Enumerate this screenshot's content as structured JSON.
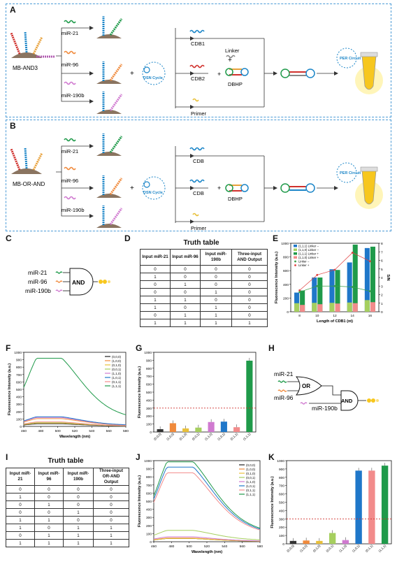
{
  "panel_labels": {
    "A": "A",
    "B": "B",
    "C": "C",
    "D": "D",
    "E": "E",
    "F": "F",
    "G": "G",
    "H": "H",
    "I": "I",
    "J": "J",
    "K": "K"
  },
  "panelA": {
    "start_label": "MB-AND3",
    "inputs": [
      "miR-21",
      "miR-96",
      "miR-190b"
    ],
    "dsn": "DSN Cycle",
    "outputs": [
      "CDB1",
      "CDB2",
      "Primer"
    ],
    "linker": "Linker",
    "plus": "+",
    "dbhp": "DBHP",
    "per": "PER Circuit"
  },
  "panelB": {
    "start_label": "MB-OR-AND",
    "inputs": [
      "miR-21",
      "miR-96",
      "miR-190b"
    ],
    "dsn": "DSN Cycle",
    "outputs": [
      "CDB",
      "CDB",
      "Primer"
    ],
    "dbhp": "DBHP",
    "per": "PER Circuit"
  },
  "panelC": {
    "inputs": [
      "miR-21",
      "miR-96",
      "miR-190b"
    ],
    "gate": "AND"
  },
  "panelD": {
    "title": "Truth table",
    "headers": [
      "Input miR-21",
      "Input miR-96",
      "Input miR-190b",
      "Three-input AND Output"
    ],
    "rows": [
      [
        "0",
        "0",
        "0",
        "0"
      ],
      [
        "1",
        "0",
        "0",
        "0"
      ],
      [
        "0",
        "1",
        "0",
        "0"
      ],
      [
        "0",
        "0",
        "1",
        "0"
      ],
      [
        "1",
        "1",
        "0",
        "0"
      ],
      [
        "1",
        "0",
        "1",
        "0"
      ],
      [
        "0",
        "1",
        "1",
        "0"
      ],
      [
        "1",
        "1",
        "1",
        "1"
      ]
    ]
  },
  "panelH": {
    "inputs": [
      "miR-21",
      "miR-96",
      "miR-190b"
    ],
    "gate1": "OR",
    "gate2": "AND"
  },
  "panelI": {
    "title": "Truth table",
    "headers": [
      "Input miR-21",
      "Input miR-96",
      "Input miR-190b",
      "Three-input OR-AND Output"
    ],
    "rows": [
      [
        "0",
        "0",
        "0",
        "0"
      ],
      [
        "1",
        "0",
        "0",
        "0"
      ],
      [
        "0",
        "1",
        "0",
        "0"
      ],
      [
        "0",
        "0",
        "1",
        "0"
      ],
      [
        "1",
        "1",
        "0",
        "0"
      ],
      [
        "1",
        "0",
        "1",
        "1"
      ],
      [
        "0",
        "1",
        "1",
        "1"
      ],
      [
        "1",
        "1",
        "1",
        "1"
      ]
    ]
  },
  "colors": {
    "blue_box": "#4a9ad6",
    "green": "#1f9a4a",
    "red_dash": "#d0312d",
    "dsn": "#1c86c8"
  },
  "chart_data": [
    {
      "id": "E",
      "type": "bar",
      "xlabel": "Length of CDB1 (nt)",
      "ylabel": "Fluorescence Intensity (a.u.)",
      "y2label": "S/N",
      "categories": [
        "8",
        "10",
        "12",
        "14",
        "16"
      ],
      "ylim": [
        0,
        1000
      ],
      "y2lim": [
        0,
        8
      ],
      "yticks": [
        0,
        200,
        400,
        600,
        800,
        1000
      ],
      "y2ticks": [
        0,
        1,
        2,
        3,
        4,
        5,
        6,
        7,
        8
      ],
      "series": [
        {
          "name": "(1,1,1)  Linker −",
          "color": "#1f77c9",
          "values": [
            280,
            500,
            620,
            720,
            930
          ]
        },
        {
          "name": "(1,1,0)  Linker −",
          "color": "#a6cf5f",
          "values": [
            125,
            130,
            130,
            135,
            170
          ]
        },
        {
          "name": "(1,1,1)  Linker +",
          "color": "#1f9a4a",
          "values": [
            310,
            500,
            610,
            980,
            950
          ]
        },
        {
          "name": "(1,1,0)  Linker +",
          "color": "#f28b8b",
          "values": [
            100,
            110,
            120,
            125,
            140
          ]
        }
      ],
      "sn_series": [
        {
          "name": "Linker −",
          "color": "#3aa04a",
          "values": [
            2.3,
            3.0,
            3.0,
            2.9,
            2.4
          ]
        },
        {
          "name": "Linker +",
          "color": "#e04040",
          "values": [
            2.5,
            4.3,
            4.9,
            6.9,
            5.9
          ]
        }
      ]
    },
    {
      "id": "F",
      "type": "line",
      "xlabel": "Wavelength (nm)",
      "ylabel": "Fluorescence Intensity (a.u.)",
      "xlim": [
        460,
        580
      ],
      "ylim": [
        0,
        1000
      ],
      "xticks": [
        460,
        480,
        500,
        520,
        540,
        560,
        580
      ],
      "yticks": [
        0,
        100,
        200,
        300,
        400,
        500,
        600,
        700,
        800,
        900,
        1000
      ],
      "series": [
        {
          "name": "(0,0,0)",
          "color": "#222222",
          "peak": 35
        },
        {
          "name": "(1,0,0)",
          "color": "#f08a3c",
          "peak": 105
        },
        {
          "name": "(0,1,0)",
          "color": "#e8c03a",
          "peak": 45
        },
        {
          "name": "(0,0,1)",
          "color": "#a6cf5f",
          "peak": 55
        },
        {
          "name": "(1,1,0)",
          "color": "#d07ad0",
          "peak": 120
        },
        {
          "name": "(1,0,1)",
          "color": "#1f77c9",
          "peak": 130
        },
        {
          "name": "(0,1,1)",
          "color": "#f28b8b",
          "peak": 60
        },
        {
          "name": "(1,1,1)",
          "color": "#1f9a4a",
          "peak": 920
        }
      ]
    },
    {
      "id": "G",
      "type": "bar",
      "ylabel": "Fluorescence Intensity (a.u.)",
      "categories": [
        "(0,0,0)",
        "(1,0,0)",
        "(0,1,0)",
        "(0,0,1)",
        "(1,1,0)",
        "(1,0,1)",
        "(0,1,1)",
        "(1,1,1)"
      ],
      "values": [
        35,
        110,
        45,
        55,
        125,
        130,
        60,
        895
      ],
      "colors": [
        "#333333",
        "#f08a3c",
        "#e8c03a",
        "#a6cf5f",
        "#d07ad0",
        "#1f77c9",
        "#f28b8b",
        "#1f9a4a"
      ],
      "threshold": 300,
      "ylim": [
        0,
        1000
      ],
      "yticks": [
        0,
        100,
        200,
        300,
        400,
        500,
        600,
        700,
        800,
        900,
        1000
      ]
    },
    {
      "id": "J",
      "type": "line",
      "xlabel": "Wavelength (nm)",
      "ylabel": "Fluorescence Intensity (a.u.)",
      "xlim": [
        460,
        580
      ],
      "ylim": [
        0,
        1000
      ],
      "xticks": [
        460,
        480,
        500,
        520,
        540,
        560,
        580
      ],
      "yticks": [
        0,
        100,
        200,
        300,
        400,
        500,
        600,
        700,
        800,
        900,
        1000
      ],
      "series": [
        {
          "name": "(0,0,0)",
          "color": "#222222",
          "peak": 40
        },
        {
          "name": "(1,0,0)",
          "color": "#f08a3c",
          "peak": 45
        },
        {
          "name": "(0,1,0)",
          "color": "#e8c03a",
          "peak": 40
        },
        {
          "name": "(0,0,1)",
          "color": "#a6cf5f",
          "peak": 140
        },
        {
          "name": "(1,1,0)",
          "color": "#d07ad0",
          "peak": 60
        },
        {
          "name": "(1,0,1)",
          "color": "#1f77c9",
          "peak": 920
        },
        {
          "name": "(0,1,1)",
          "color": "#f28b8b",
          "peak": 850
        },
        {
          "name": "(1,1,1)",
          "color": "#1f9a4a",
          "peak": 985
        }
      ]
    },
    {
      "id": "K",
      "type": "bar",
      "ylabel": "Fluorescence Intensity (a.u.)",
      "categories": [
        "(0,0,0)",
        "(1,0,0)",
        "(0,1,0)",
        "(0,0,1)",
        "(1,1,0)",
        "(1,0,1)",
        "(0,1,1)",
        "(1,1,1)"
      ],
      "values": [
        35,
        40,
        35,
        130,
        45,
        880,
        880,
        940
      ],
      "colors": [
        "#333333",
        "#f08a3c",
        "#e8c03a",
        "#a6cf5f",
        "#d07ad0",
        "#1f77c9",
        "#f28b8b",
        "#1f9a4a"
      ],
      "threshold": 300,
      "ylim": [
        0,
        1000
      ],
      "yticks": [
        0,
        100,
        200,
        300,
        400,
        500,
        600,
        700,
        800,
        900,
        1000
      ]
    }
  ]
}
